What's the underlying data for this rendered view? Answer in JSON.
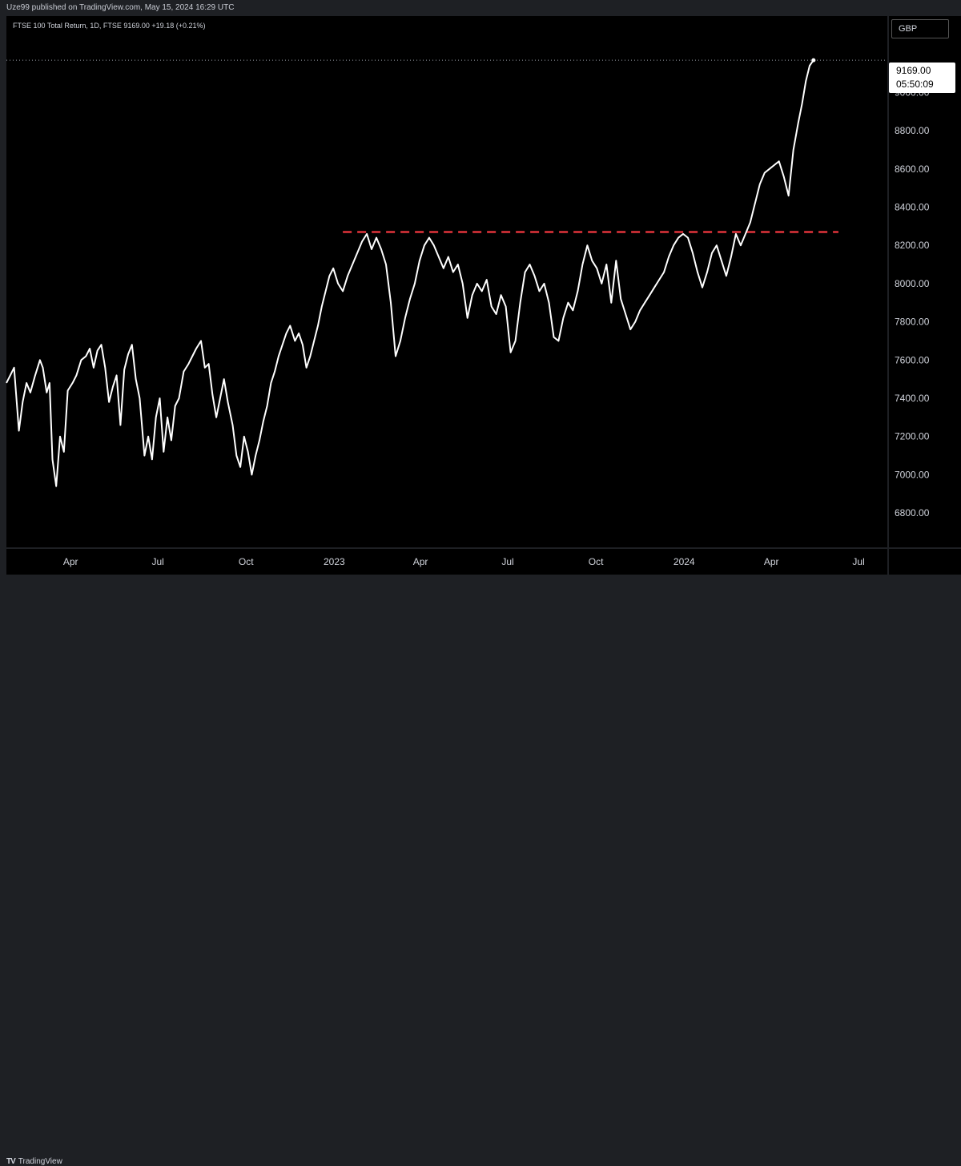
{
  "header": {
    "published": "Uze99 published on TradingView.com, May 15, 2024 16:29 UTC"
  },
  "legend": {
    "text": "FTSE 100 Total Return, 1D, FTSE  9169.00  +19.18 (+0.21%)"
  },
  "currency": "GBP",
  "last_price": {
    "price": "9169.00",
    "countdown": "05:50:09"
  },
  "footer": {
    "logo_mark": "TV",
    "logo_text": "TradingView"
  },
  "colors": {
    "line": "#ffffff",
    "resistance": "#e0333a",
    "background": "#000000",
    "frame": "#1e2024"
  },
  "chart_data": {
    "type": "line",
    "title": "",
    "xlabel": "",
    "ylabel": "",
    "ylim": [
      6620,
      9400
    ],
    "xlim": [
      "2022-01-24",
      "2024-07-31"
    ],
    "grid": false,
    "y_ticks": [
      6800,
      7000,
      7200,
      7400,
      7600,
      7800,
      8000,
      8200,
      8400,
      8600,
      8800,
      9000
    ],
    "y_tick_labels": [
      "6800.00",
      "7000.00",
      "7200.00",
      "7400.00",
      "7600.00",
      "7800.00",
      "8000.00",
      "8200.00",
      "8400.00",
      "8600.00",
      "8800.00",
      "9000.00"
    ],
    "x_ticks": [
      {
        "date": "2022-04-01",
        "label": "Apr"
      },
      {
        "date": "2022-07-01",
        "label": "Jul"
      },
      {
        "date": "2022-10-01",
        "label": "Oct"
      },
      {
        "date": "2023-01-01",
        "label": "2023"
      },
      {
        "date": "2023-04-01",
        "label": "Apr"
      },
      {
        "date": "2023-07-01",
        "label": "Jul"
      },
      {
        "date": "2023-10-01",
        "label": "Oct"
      },
      {
        "date": "2024-01-01",
        "label": "2024"
      },
      {
        "date": "2024-04-01",
        "label": "Apr"
      },
      {
        "date": "2024-07-01",
        "label": "Jul"
      }
    ],
    "resistance": {
      "value": 8270,
      "start": "2023-01-10",
      "end": "2024-06-10"
    },
    "series": [
      {
        "points": [
          [
            "2022-01-24",
            7480
          ],
          [
            "2022-01-28",
            7520
          ],
          [
            "2022-02-01",
            7560
          ],
          [
            "2022-02-06",
            7230
          ],
          [
            "2022-02-10",
            7380
          ],
          [
            "2022-02-14",
            7480
          ],
          [
            "2022-02-18",
            7430
          ],
          [
            "2022-02-23",
            7520
          ],
          [
            "2022-02-28",
            7600
          ],
          [
            "2022-03-03",
            7560
          ],
          [
            "2022-03-07",
            7430
          ],
          [
            "2022-03-10",
            7480
          ],
          [
            "2022-03-13",
            7080
          ],
          [
            "2022-03-17",
            6940
          ],
          [
            "2022-03-21",
            7200
          ],
          [
            "2022-03-25",
            7120
          ],
          [
            "2022-03-29",
            7440
          ],
          [
            "2022-04-03",
            7480
          ],
          [
            "2022-04-07",
            7520
          ],
          [
            "2022-04-12",
            7600
          ],
          [
            "2022-04-17",
            7620
          ],
          [
            "2022-04-21",
            7660
          ],
          [
            "2022-04-25",
            7560
          ],
          [
            "2022-04-29",
            7650
          ],
          [
            "2022-05-03",
            7680
          ],
          [
            "2022-05-07",
            7560
          ],
          [
            "2022-05-11",
            7380
          ],
          [
            "2022-05-15",
            7460
          ],
          [
            "2022-05-19",
            7520
          ],
          [
            "2022-05-23",
            7260
          ],
          [
            "2022-05-27",
            7550
          ],
          [
            "2022-05-31",
            7630
          ],
          [
            "2022-06-04",
            7680
          ],
          [
            "2022-06-08",
            7500
          ],
          [
            "2022-06-12",
            7400
          ],
          [
            "2022-06-17",
            7100
          ],
          [
            "2022-06-21",
            7200
          ],
          [
            "2022-06-25",
            7080
          ],
          [
            "2022-06-29",
            7300
          ],
          [
            "2022-07-03",
            7400
          ],
          [
            "2022-07-07",
            7120
          ],
          [
            "2022-07-11",
            7300
          ],
          [
            "2022-07-15",
            7180
          ],
          [
            "2022-07-19",
            7360
          ],
          [
            "2022-07-23",
            7400
          ],
          [
            "2022-07-28",
            7540
          ],
          [
            "2022-08-02",
            7580
          ],
          [
            "2022-08-06",
            7620
          ],
          [
            "2022-08-10",
            7660
          ],
          [
            "2022-08-15",
            7700
          ],
          [
            "2022-08-19",
            7560
          ],
          [
            "2022-08-23",
            7580
          ],
          [
            "2022-08-27",
            7420
          ],
          [
            "2022-08-31",
            7300
          ],
          [
            "2022-09-04",
            7400
          ],
          [
            "2022-09-08",
            7500
          ],
          [
            "2022-09-12",
            7380
          ],
          [
            "2022-09-17",
            7260
          ],
          [
            "2022-09-21",
            7100
          ],
          [
            "2022-09-25",
            7040
          ],
          [
            "2022-09-29",
            7200
          ],
          [
            "2022-10-03",
            7120
          ],
          [
            "2022-10-07",
            7000
          ],
          [
            "2022-10-11",
            7100
          ],
          [
            "2022-10-15",
            7180
          ],
          [
            "2022-10-19",
            7280
          ],
          [
            "2022-10-23",
            7360
          ],
          [
            "2022-10-27",
            7480
          ],
          [
            "2022-10-31",
            7540
          ],
          [
            "2022-11-04",
            7620
          ],
          [
            "2022-11-08",
            7680
          ],
          [
            "2022-11-12",
            7740
          ],
          [
            "2022-11-16",
            7780
          ],
          [
            "2022-11-21",
            7700
          ],
          [
            "2022-11-25",
            7740
          ],
          [
            "2022-11-29",
            7680
          ],
          [
            "2022-12-03",
            7560
          ],
          [
            "2022-12-07",
            7620
          ],
          [
            "2022-12-11",
            7700
          ],
          [
            "2022-12-15",
            7780
          ],
          [
            "2022-12-19",
            7880
          ],
          [
            "2022-12-23",
            7960
          ],
          [
            "2022-12-27",
            8040
          ],
          [
            "2022-12-31",
            8080
          ],
          [
            "2023-01-05",
            8000
          ],
          [
            "2023-01-10",
            7960
          ],
          [
            "2023-01-15",
            8040
          ],
          [
            "2023-01-20",
            8100
          ],
          [
            "2023-01-25",
            8160
          ],
          [
            "2023-01-30",
            8220
          ],
          [
            "2023-02-04",
            8260
          ],
          [
            "2023-02-09",
            8180
          ],
          [
            "2023-02-14",
            8240
          ],
          [
            "2023-02-19",
            8180
          ],
          [
            "2023-02-24",
            8100
          ],
          [
            "2023-03-01",
            7900
          ],
          [
            "2023-03-06",
            7620
          ],
          [
            "2023-03-11",
            7700
          ],
          [
            "2023-03-16",
            7820
          ],
          [
            "2023-03-21",
            7920
          ],
          [
            "2023-03-26",
            8000
          ],
          [
            "2023-03-31",
            8120
          ],
          [
            "2023-04-05",
            8200
          ],
          [
            "2023-04-10",
            8240
          ],
          [
            "2023-04-15",
            8200
          ],
          [
            "2023-04-20",
            8140
          ],
          [
            "2023-04-25",
            8080
          ],
          [
            "2023-04-30",
            8140
          ],
          [
            "2023-05-05",
            8060
          ],
          [
            "2023-05-10",
            8100
          ],
          [
            "2023-05-15",
            8000
          ],
          [
            "2023-05-20",
            7820
          ],
          [
            "2023-05-25",
            7940
          ],
          [
            "2023-05-30",
            8000
          ],
          [
            "2023-06-04",
            7960
          ],
          [
            "2023-06-09",
            8020
          ],
          [
            "2023-06-14",
            7880
          ],
          [
            "2023-06-19",
            7840
          ],
          [
            "2023-06-24",
            7940
          ],
          [
            "2023-06-29",
            7880
          ],
          [
            "2023-07-04",
            7640
          ],
          [
            "2023-07-09",
            7700
          ],
          [
            "2023-07-14",
            7900
          ],
          [
            "2023-07-19",
            8060
          ],
          [
            "2023-07-24",
            8100
          ],
          [
            "2023-07-29",
            8040
          ],
          [
            "2023-08-03",
            7960
          ],
          [
            "2023-08-08",
            8000
          ],
          [
            "2023-08-13",
            7900
          ],
          [
            "2023-08-18",
            7720
          ],
          [
            "2023-08-23",
            7700
          ],
          [
            "2023-08-28",
            7820
          ],
          [
            "2023-09-02",
            7900
          ],
          [
            "2023-09-07",
            7860
          ],
          [
            "2023-09-12",
            7960
          ],
          [
            "2023-09-17",
            8100
          ],
          [
            "2023-09-22",
            8200
          ],
          [
            "2023-09-27",
            8120
          ],
          [
            "2023-10-02",
            8080
          ],
          [
            "2023-10-07",
            8000
          ],
          [
            "2023-10-12",
            8100
          ],
          [
            "2023-10-17",
            7900
          ],
          [
            "2023-10-22",
            8120
          ],
          [
            "2023-10-27",
            7920
          ],
          [
            "2023-11-01",
            7840
          ],
          [
            "2023-11-06",
            7760
          ],
          [
            "2023-11-11",
            7800
          ],
          [
            "2023-11-16",
            7860
          ],
          [
            "2023-11-21",
            7900
          ],
          [
            "2023-11-26",
            7940
          ],
          [
            "2023-12-01",
            7980
          ],
          [
            "2023-12-06",
            8020
          ],
          [
            "2023-12-11",
            8060
          ],
          [
            "2023-12-16",
            8140
          ],
          [
            "2023-12-21",
            8200
          ],
          [
            "2023-12-26",
            8240
          ],
          [
            "2023-12-31",
            8260
          ],
          [
            "2024-01-05",
            8240
          ],
          [
            "2024-01-10",
            8160
          ],
          [
            "2024-01-15",
            8060
          ],
          [
            "2024-01-20",
            7980
          ],
          [
            "2024-01-25",
            8060
          ],
          [
            "2024-01-30",
            8160
          ],
          [
            "2024-02-04",
            8200
          ],
          [
            "2024-02-09",
            8120
          ],
          [
            "2024-02-14",
            8040
          ],
          [
            "2024-02-19",
            8140
          ],
          [
            "2024-02-24",
            8260
          ],
          [
            "2024-02-29",
            8200
          ],
          [
            "2024-03-05",
            8260
          ],
          [
            "2024-03-10",
            8320
          ],
          [
            "2024-03-15",
            8420
          ],
          [
            "2024-03-20",
            8520
          ],
          [
            "2024-03-25",
            8580
          ],
          [
            "2024-03-30",
            8600
          ],
          [
            "2024-04-04",
            8620
          ],
          [
            "2024-04-09",
            8640
          ],
          [
            "2024-04-14",
            8560
          ],
          [
            "2024-04-19",
            8460
          ],
          [
            "2024-04-24",
            8700
          ],
          [
            "2024-04-29",
            8840
          ],
          [
            "2024-05-03",
            8940
          ],
          [
            "2024-05-07",
            9060
          ],
          [
            "2024-05-11",
            9140
          ],
          [
            "2024-05-15",
            9169
          ]
        ]
      }
    ]
  }
}
